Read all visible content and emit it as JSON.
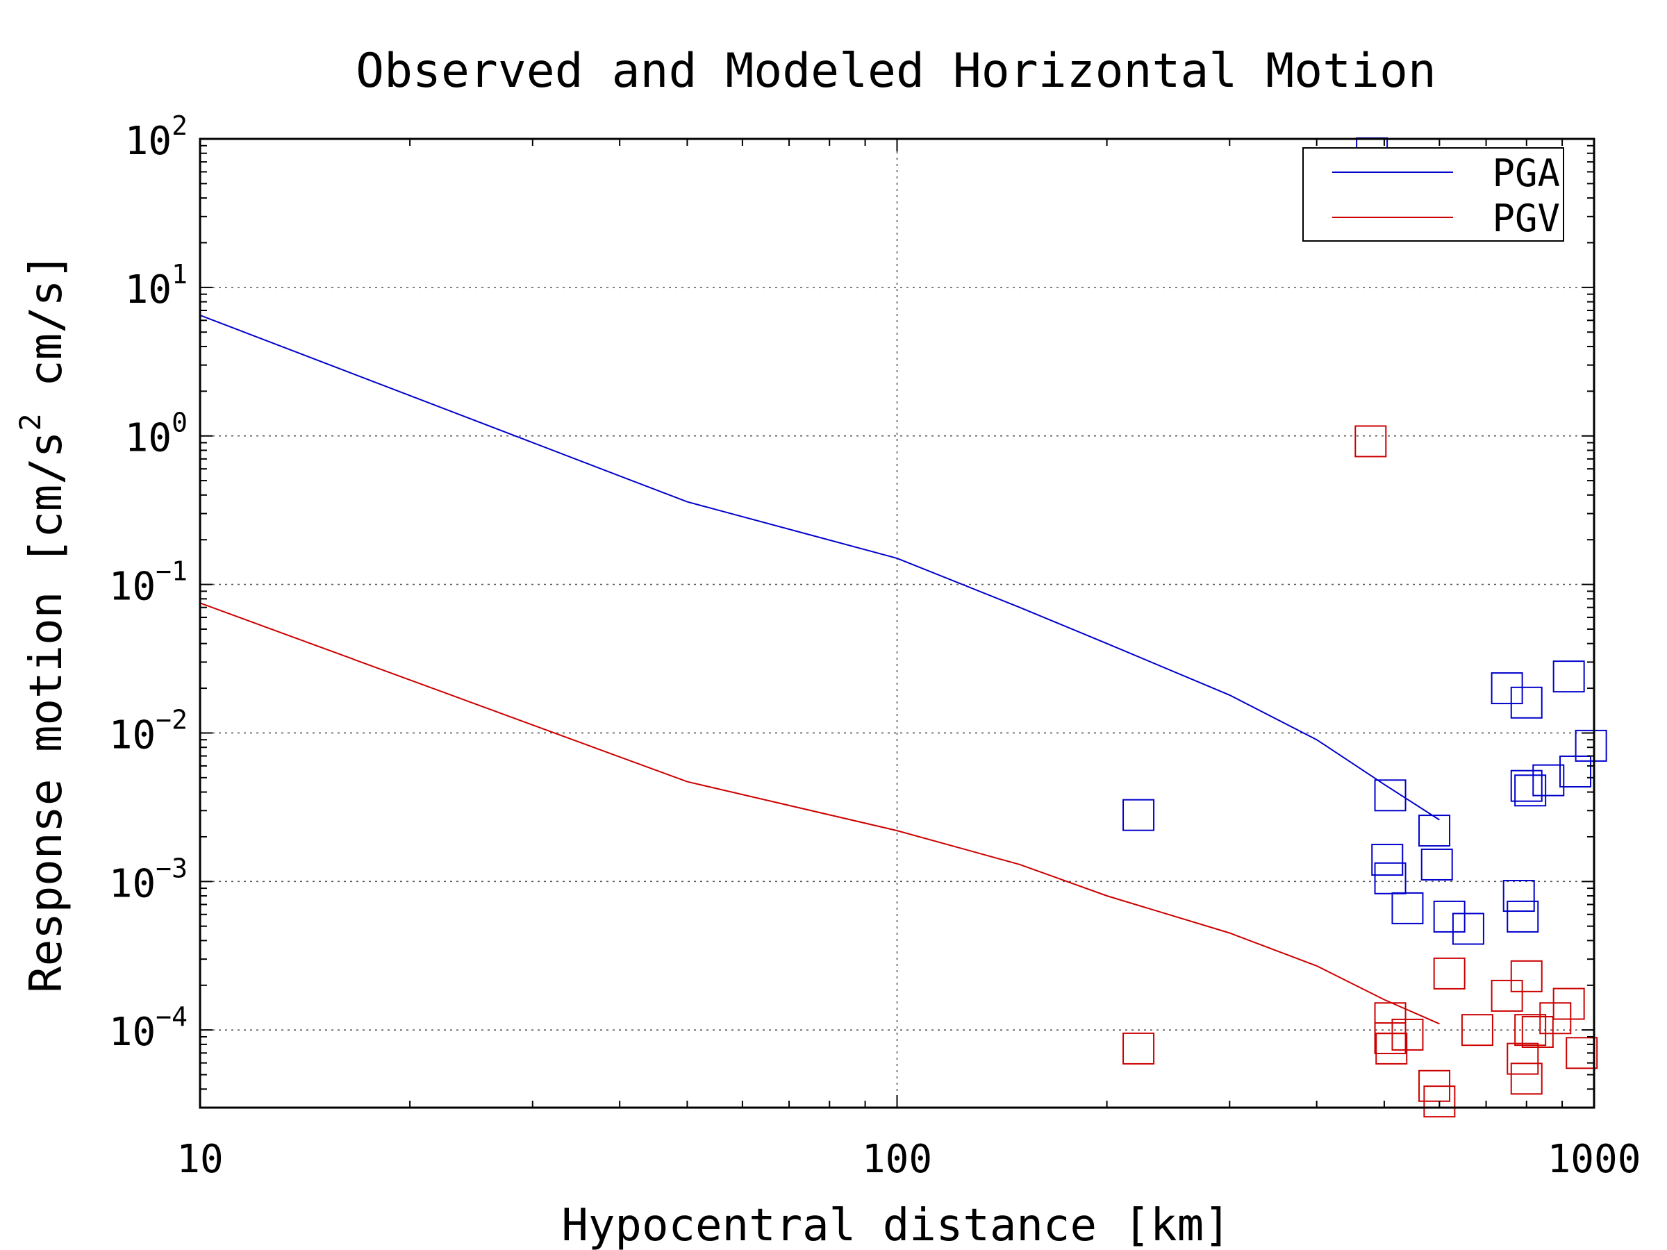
{
  "chart_data": {
    "type": "scatter",
    "title": "Observed and Modeled Horizontal Motion",
    "xlabel": "Hypocentral distance [km]",
    "ylabel_parts": {
      "before": "Response motion [cm/s",
      "sup": "2",
      "after": "  cm/s]"
    },
    "x_scale": "log",
    "y_scale": "log",
    "xlim": [
      10,
      1000
    ],
    "ylim": [
      3e-05,
      100
    ],
    "x_ticks": [
      {
        "value": 10,
        "label": "10"
      },
      {
        "value": 100,
        "label": "100"
      },
      {
        "value": 1000,
        "label": "1000"
      }
    ],
    "y_ticks": [
      {
        "value": 100,
        "base": "10",
        "exp": "2"
      },
      {
        "value": 10,
        "base": "10",
        "exp": "1"
      },
      {
        "value": 1,
        "base": "10",
        "exp": "0"
      },
      {
        "value": 0.1,
        "base": "10",
        "exp": "−1"
      },
      {
        "value": 0.01,
        "base": "10",
        "exp": "−2"
      },
      {
        "value": 0.001,
        "base": "10",
        "exp": "−3"
      },
      {
        "value": 0.0001,
        "base": "10",
        "exp": "−4"
      }
    ],
    "grid": true,
    "legend_position": "top-right",
    "series": [
      {
        "name": "PGA",
        "color": "#0000cc",
        "model_line": [
          [
            10,
            6.5
          ],
          [
            50,
            0.36
          ],
          [
            100,
            0.15
          ],
          [
            150,
            0.07
          ],
          [
            200,
            0.04
          ],
          [
            300,
            0.018
          ],
          [
            400,
            0.009
          ],
          [
            500,
            0.0045
          ],
          [
            600,
            0.0026
          ]
        ],
        "observed": [
          [
            480,
            80
          ],
          [
            222,
            0.0028
          ],
          [
            510,
            0.0038
          ],
          [
            590,
            0.0022
          ],
          [
            505,
            0.0014
          ],
          [
            595,
            0.0013
          ],
          [
            510,
            0.00105
          ],
          [
            540,
            0.00066
          ],
          [
            620,
            0.00058
          ],
          [
            660,
            0.00048
          ],
          [
            750,
            0.02
          ],
          [
            800,
            0.016
          ],
          [
            920,
            0.024
          ],
          [
            990,
            0.0082
          ],
          [
            940,
            0.0055
          ],
          [
            860,
            0.0048
          ],
          [
            800,
            0.0044
          ],
          [
            810,
            0.0041
          ],
          [
            780,
            0.0008
          ],
          [
            790,
            0.00058
          ]
        ]
      },
      {
        "name": "PGV",
        "color": "#cc0000",
        "model_line": [
          [
            10,
            0.075
          ],
          [
            50,
            0.0047
          ],
          [
            100,
            0.0022
          ],
          [
            150,
            0.0013
          ],
          [
            200,
            0.0008
          ],
          [
            300,
            0.00045
          ],
          [
            400,
            0.00027
          ],
          [
            500,
            0.00016
          ],
          [
            600,
            0.00011
          ]
        ],
        "observed": [
          [
            478,
            0.92
          ],
          [
            222,
            7.5e-05
          ],
          [
            510,
            0.00012
          ],
          [
            510,
            8.8e-05
          ],
          [
            512,
            7.5e-05
          ],
          [
            540,
            9.3e-05
          ],
          [
            620,
            0.00024
          ],
          [
            680,
            0.0001
          ],
          [
            750,
            0.00017
          ],
          [
            800,
            0.00023
          ],
          [
            920,
            0.00015
          ],
          [
            880,
            0.00012
          ],
          [
            810,
            0.0001
          ],
          [
            790,
            6.4e-05
          ],
          [
            800,
            4.7e-05
          ],
          [
            960,
            7e-05
          ],
          [
            590,
            4.2e-05
          ],
          [
            600,
            3.3e-05
          ],
          [
            830,
            9.7e-05
          ]
        ]
      }
    ]
  }
}
